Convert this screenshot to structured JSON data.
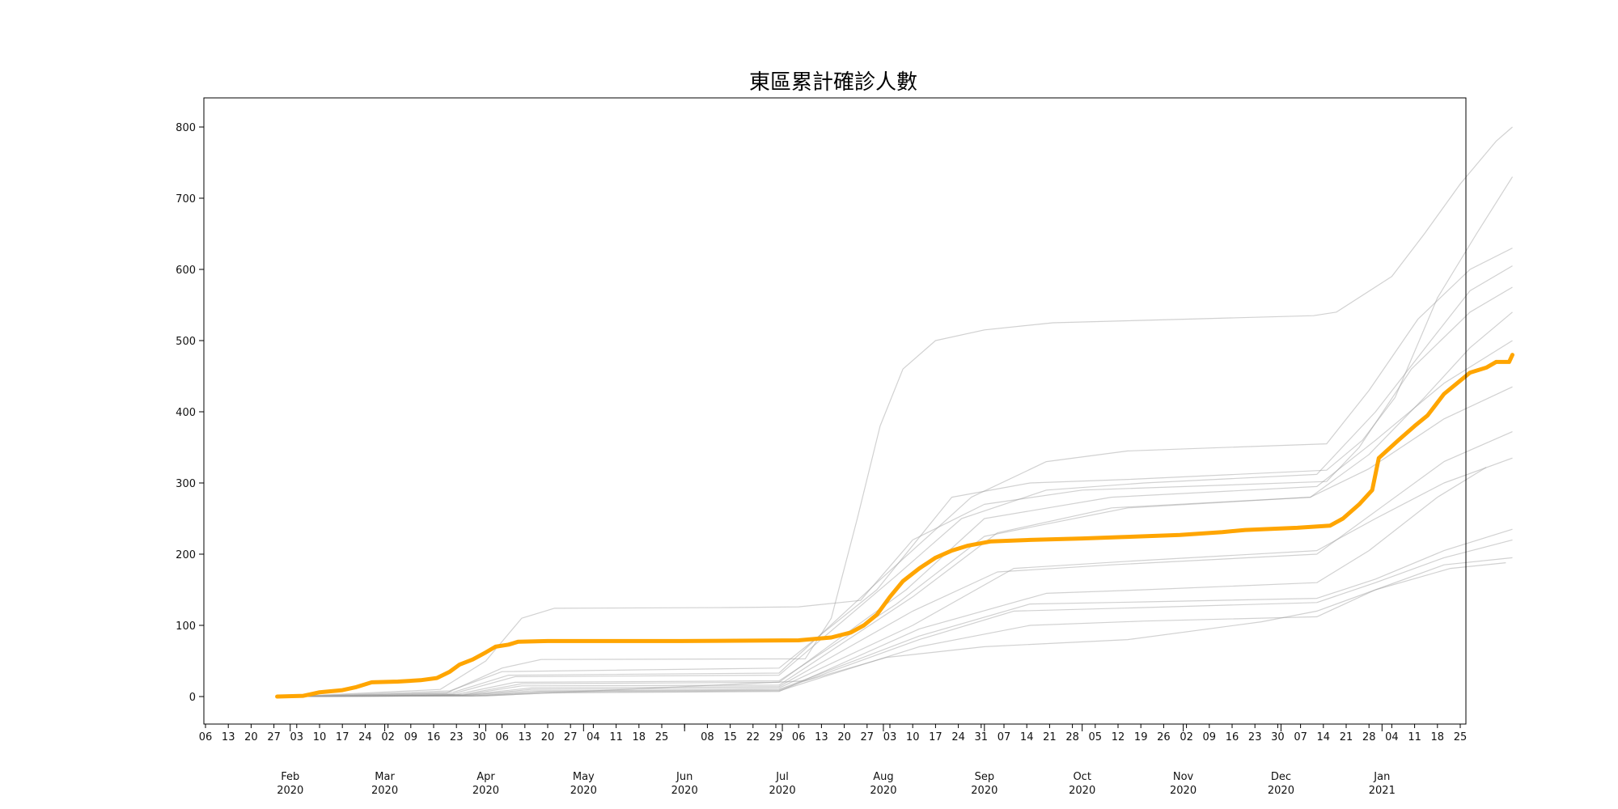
{
  "chart_data": {
    "type": "line",
    "title": "東區累計確診人數",
    "xlabel": "",
    "ylabel": "",
    "x_axis": {
      "type": "date",
      "range": [
        "2020-01-06",
        "2021-01-25"
      ],
      "minor_tick_labels": [
        "06",
        "13",
        "20",
        "27",
        "03",
        "10",
        "17",
        "24",
        "02",
        "09",
        "16",
        "23",
        "30",
        "06",
        "13",
        "20",
        "27",
        "04",
        "11",
        "18",
        "25",
        "",
        "08",
        "15",
        "22",
        "29",
        "06",
        "13",
        "20",
        "27",
        "03",
        "10",
        "17",
        "24",
        "31",
        "07",
        "14",
        "21",
        "28",
        "05",
        "12",
        "19",
        "26",
        "02",
        "09",
        "16",
        "23",
        "30",
        "07",
        "14",
        "21",
        "28",
        "04",
        "11",
        "18",
        "25"
      ],
      "month_labels": [
        {
          "month": "Feb",
          "year": "2020"
        },
        {
          "month": "Mar",
          "year": "2020"
        },
        {
          "month": "Apr",
          "year": "2020"
        },
        {
          "month": "May",
          "year": "2020"
        },
        {
          "month": "Jun",
          "year": "2020"
        },
        {
          "month": "Jul",
          "year": "2020"
        },
        {
          "month": "Aug",
          "year": "2020"
        },
        {
          "month": "Sep",
          "year": "2020"
        },
        {
          "month": "Oct",
          "year": "2020"
        },
        {
          "month": "Nov",
          "year": "2020"
        },
        {
          "month": "Dec",
          "year": "2020"
        },
        {
          "month": "Jan",
          "year": "2021"
        }
      ]
    },
    "y_axis": {
      "ylim": [
        -40,
        840
      ],
      "ticks": [
        0,
        100,
        200,
        300,
        400,
        500,
        600,
        700,
        800
      ]
    },
    "grid": false,
    "legend": "none",
    "highlight_color": "#ffa500",
    "background_color": "#999999",
    "series": [
      {
        "highlight": true,
        "points": [
          [
            "2020-01-28",
            0
          ],
          [
            "2020-02-05",
            1
          ],
          [
            "2020-02-10",
            6
          ],
          [
            "2020-02-17",
            9
          ],
          [
            "2020-02-21",
            13
          ],
          [
            "2020-02-26",
            20
          ],
          [
            "2020-03-05",
            21
          ],
          [
            "2020-03-12",
            23
          ],
          [
            "2020-03-17",
            26
          ],
          [
            "2020-03-21",
            35
          ],
          [
            "2020-03-24",
            45
          ],
          [
            "2020-03-28",
            52
          ],
          [
            "2020-04-01",
            62
          ],
          [
            "2020-04-04",
            70
          ],
          [
            "2020-04-08",
            73
          ],
          [
            "2020-04-11",
            77
          ],
          [
            "2020-04-20",
            78
          ],
          [
            "2020-05-31",
            78
          ],
          [
            "2020-07-06",
            79
          ],
          [
            "2020-07-16",
            83
          ],
          [
            "2020-07-22",
            90
          ],
          [
            "2020-07-26",
            100
          ],
          [
            "2020-07-30",
            115
          ],
          [
            "2020-08-03",
            140
          ],
          [
            "2020-08-07",
            162
          ],
          [
            "2020-08-12",
            180
          ],
          [
            "2020-08-17",
            195
          ],
          [
            "2020-08-22",
            205
          ],
          [
            "2020-08-27",
            212
          ],
          [
            "2020-09-03",
            218
          ],
          [
            "2020-09-15",
            220
          ],
          [
            "2020-10-01",
            222
          ],
          [
            "2020-10-13",
            224
          ],
          [
            "2020-10-31",
            227
          ],
          [
            "2020-11-13",
            231
          ],
          [
            "2020-11-20",
            234
          ],
          [
            "2020-12-06",
            237
          ],
          [
            "2020-12-16",
            240
          ],
          [
            "2020-12-20",
            250
          ],
          [
            "2020-12-25",
            270
          ],
          [
            "2020-12-29",
            290
          ],
          [
            "2020-12-31",
            335
          ],
          [
            "2021-01-06",
            360
          ],
          [
            "2021-01-11",
            380
          ],
          [
            "2021-01-15",
            395
          ],
          [
            "2021-01-20",
            425
          ],
          [
            "2021-01-24",
            440
          ],
          [
            "2021-01-28",
            455
          ],
          [
            "2021-02-02",
            462
          ],
          [
            "2021-02-05",
            470
          ],
          [
            "2021-02-09",
            470
          ],
          [
            "2021-02-10",
            480
          ]
        ]
      },
      {
        "points": [
          [
            "2020-02-01",
            0
          ],
          [
            "2020-03-18",
            10
          ],
          [
            "2020-04-01",
            50
          ],
          [
            "2020-04-12",
            110
          ],
          [
            "2020-04-22",
            124
          ],
          [
            "2020-06-15",
            125
          ],
          [
            "2020-07-06",
            126
          ],
          [
            "2020-07-25",
            135
          ],
          [
            "2020-08-10",
            220
          ],
          [
            "2020-09-01",
            270
          ],
          [
            "2020-10-01",
            290
          ],
          [
            "2020-12-15",
            302
          ],
          [
            "2020-12-25",
            350
          ],
          [
            "2021-01-10",
            460
          ],
          [
            "2021-01-28",
            540
          ],
          [
            "2021-02-10",
            575
          ]
        ]
      },
      {
        "points": [
          [
            "2020-02-01",
            0
          ],
          [
            "2020-03-20",
            5
          ],
          [
            "2020-04-06",
            40
          ],
          [
            "2020-04-18",
            52
          ],
          [
            "2020-07-08",
            53
          ],
          [
            "2020-07-16",
            110
          ],
          [
            "2020-07-24",
            250
          ],
          [
            "2020-07-31",
            380
          ],
          [
            "2020-08-07",
            460
          ],
          [
            "2020-08-17",
            500
          ],
          [
            "2020-09-01",
            515
          ],
          [
            "2020-09-22",
            525
          ],
          [
            "2020-11-01",
            530
          ],
          [
            "2020-12-11",
            535
          ],
          [
            "2020-12-18",
            540
          ],
          [
            "2021-01-04",
            590
          ],
          [
            "2021-01-14",
            650
          ],
          [
            "2021-01-25",
            720
          ],
          [
            "2021-02-05",
            780
          ],
          [
            "2021-02-10",
            800
          ]
        ]
      },
      {
        "points": [
          [
            "2020-02-01",
            0
          ],
          [
            "2020-03-21",
            8
          ],
          [
            "2020-04-06",
            35
          ],
          [
            "2020-06-30",
            40
          ],
          [
            "2020-07-30",
            150
          ],
          [
            "2020-08-22",
            280
          ],
          [
            "2020-09-15",
            300
          ],
          [
            "2020-10-15",
            305
          ],
          [
            "2020-12-15",
            318
          ],
          [
            "2020-12-26",
            360
          ],
          [
            "2021-01-05",
            420
          ],
          [
            "2021-01-18",
            560
          ],
          [
            "2021-01-30",
            650
          ],
          [
            "2021-02-10",
            730
          ]
        ]
      },
      {
        "points": [
          [
            "2020-02-01",
            0
          ],
          [
            "2020-03-22",
            6
          ],
          [
            "2020-04-08",
            30
          ],
          [
            "2020-06-30",
            33
          ],
          [
            "2020-07-30",
            160
          ],
          [
            "2020-08-28",
            280
          ],
          [
            "2020-09-20",
            330
          ],
          [
            "2020-10-15",
            345
          ],
          [
            "2020-12-15",
            355
          ],
          [
            "2020-12-28",
            430
          ],
          [
            "2021-01-12",
            530
          ],
          [
            "2021-01-28",
            600
          ],
          [
            "2021-02-10",
            630
          ]
        ]
      },
      {
        "points": [
          [
            "2020-02-01",
            0
          ],
          [
            "2020-03-22",
            4
          ],
          [
            "2020-04-10",
            28
          ],
          [
            "2020-06-30",
            30
          ],
          [
            "2020-08-05",
            170
          ],
          [
            "2020-08-25",
            250
          ],
          [
            "2020-09-20",
            290
          ],
          [
            "2020-10-20",
            300
          ],
          [
            "2020-12-12",
            312
          ],
          [
            "2020-12-30",
            400
          ],
          [
            "2021-01-16",
            500
          ],
          [
            "2021-01-28",
            570
          ],
          [
            "2021-02-10",
            605
          ]
        ]
      },
      {
        "points": [
          [
            "2020-02-01",
            0
          ],
          [
            "2020-03-23",
            3
          ],
          [
            "2020-04-10",
            20
          ],
          [
            "2020-06-30",
            22
          ],
          [
            "2020-08-05",
            130
          ],
          [
            "2020-09-01",
            225
          ],
          [
            "2020-10-15",
            265
          ],
          [
            "2020-12-10",
            280
          ],
          [
            "2020-12-28",
            340
          ],
          [
            "2021-01-14",
            420
          ],
          [
            "2021-01-28",
            490
          ],
          [
            "2021-02-10",
            540
          ]
        ]
      },
      {
        "points": [
          [
            "2020-02-01",
            0
          ],
          [
            "2020-03-25",
            3
          ],
          [
            "2020-04-12",
            18
          ],
          [
            "2020-06-30",
            20
          ],
          [
            "2020-08-08",
            150
          ],
          [
            "2020-09-01",
            250
          ],
          [
            "2020-10-10",
            280
          ],
          [
            "2020-12-12",
            295
          ],
          [
            "2020-12-30",
            360
          ],
          [
            "2021-01-20",
            440
          ],
          [
            "2021-02-10",
            500
          ]
        ]
      },
      {
        "points": [
          [
            "2020-02-01",
            0
          ],
          [
            "2020-03-25",
            2
          ],
          [
            "2020-04-12",
            15
          ],
          [
            "2020-06-30",
            16
          ],
          [
            "2020-08-10",
            140
          ],
          [
            "2020-09-05",
            230
          ],
          [
            "2020-10-10",
            265
          ],
          [
            "2020-12-10",
            280
          ],
          [
            "2020-12-28",
            320
          ],
          [
            "2021-01-20",
            390
          ],
          [
            "2021-02-10",
            435
          ]
        ]
      },
      {
        "points": [
          [
            "2020-02-01",
            0
          ],
          [
            "2020-03-25",
            2
          ],
          [
            "2020-04-15",
            12
          ],
          [
            "2020-06-30",
            14
          ],
          [
            "2020-08-10",
            120
          ],
          [
            "2020-09-05",
            175
          ],
          [
            "2020-10-10",
            185
          ],
          [
            "2020-12-12",
            200
          ],
          [
            "2020-12-30",
            260
          ],
          [
            "2021-01-20",
            330
          ],
          [
            "2021-02-10",
            372
          ]
        ]
      },
      {
        "points": [
          [
            "2020-02-01",
            0
          ],
          [
            "2020-03-27",
            2
          ],
          [
            "2020-04-15",
            10
          ],
          [
            "2020-06-30",
            12
          ],
          [
            "2020-08-10",
            100
          ],
          [
            "2020-09-10",
            180
          ],
          [
            "2020-10-15",
            190
          ],
          [
            "2020-12-12",
            205
          ],
          [
            "2020-12-30",
            250
          ],
          [
            "2021-01-20",
            300
          ],
          [
            "2021-02-10",
            335
          ]
        ]
      },
      {
        "points": [
          [
            "2020-02-01",
            0
          ],
          [
            "2020-03-27",
            2
          ],
          [
            "2020-04-15",
            8
          ],
          [
            "2020-06-30",
            10
          ],
          [
            "2020-08-12",
            85
          ],
          [
            "2020-09-15",
            130
          ],
          [
            "2020-10-20",
            133
          ],
          [
            "2020-12-12",
            138
          ],
          [
            "2020-12-30",
            165
          ],
          [
            "2021-01-20",
            205
          ],
          [
            "2021-02-10",
            235
          ]
        ]
      },
      {
        "points": [
          [
            "2020-02-01",
            0
          ],
          [
            "2020-03-28",
            1
          ],
          [
            "2020-04-18",
            7
          ],
          [
            "2020-06-30",
            9
          ],
          [
            "2020-08-12",
            80
          ],
          [
            "2020-09-10",
            120
          ],
          [
            "2020-10-20",
            125
          ],
          [
            "2020-12-12",
            132
          ],
          [
            "2020-12-30",
            160
          ],
          [
            "2021-01-20",
            195
          ],
          [
            "2021-02-10",
            220
          ]
        ]
      },
      {
        "points": [
          [
            "2020-02-01",
            0
          ],
          [
            "2020-03-28",
            1
          ],
          [
            "2020-04-18",
            6
          ],
          [
            "2020-06-30",
            8
          ],
          [
            "2020-08-12",
            70
          ],
          [
            "2020-09-15",
            100
          ],
          [
            "2020-10-20",
            106
          ],
          [
            "2020-12-12",
            112
          ],
          [
            "2020-12-30",
            150
          ],
          [
            "2021-01-20",
            185
          ],
          [
            "2021-02-10",
            195
          ]
        ]
      },
      {
        "points": [
          [
            "2020-02-01",
            0
          ],
          [
            "2020-04-01",
            1
          ],
          [
            "2020-04-20",
            5
          ],
          [
            "2020-07-08",
            22
          ],
          [
            "2020-08-02",
            55
          ],
          [
            "2020-09-01",
            70
          ],
          [
            "2020-10-15",
            80
          ],
          [
            "2020-11-25",
            105
          ],
          [
            "2020-12-12",
            120
          ],
          [
            "2020-12-30",
            150
          ],
          [
            "2021-01-22",
            180
          ],
          [
            "2021-02-08",
            188
          ]
        ]
      },
      {
        "points": [
          [
            "2020-02-01",
            0
          ],
          [
            "2020-04-01",
            1
          ],
          [
            "2020-04-20",
            5
          ],
          [
            "2020-06-30",
            7
          ],
          [
            "2020-08-12",
            95
          ],
          [
            "2020-09-20",
            145
          ],
          [
            "2020-10-20",
            150
          ],
          [
            "2020-12-12",
            160
          ],
          [
            "2020-12-28",
            205
          ],
          [
            "2021-01-18",
            280
          ],
          [
            "2021-02-02",
            322
          ]
        ]
      }
    ]
  }
}
